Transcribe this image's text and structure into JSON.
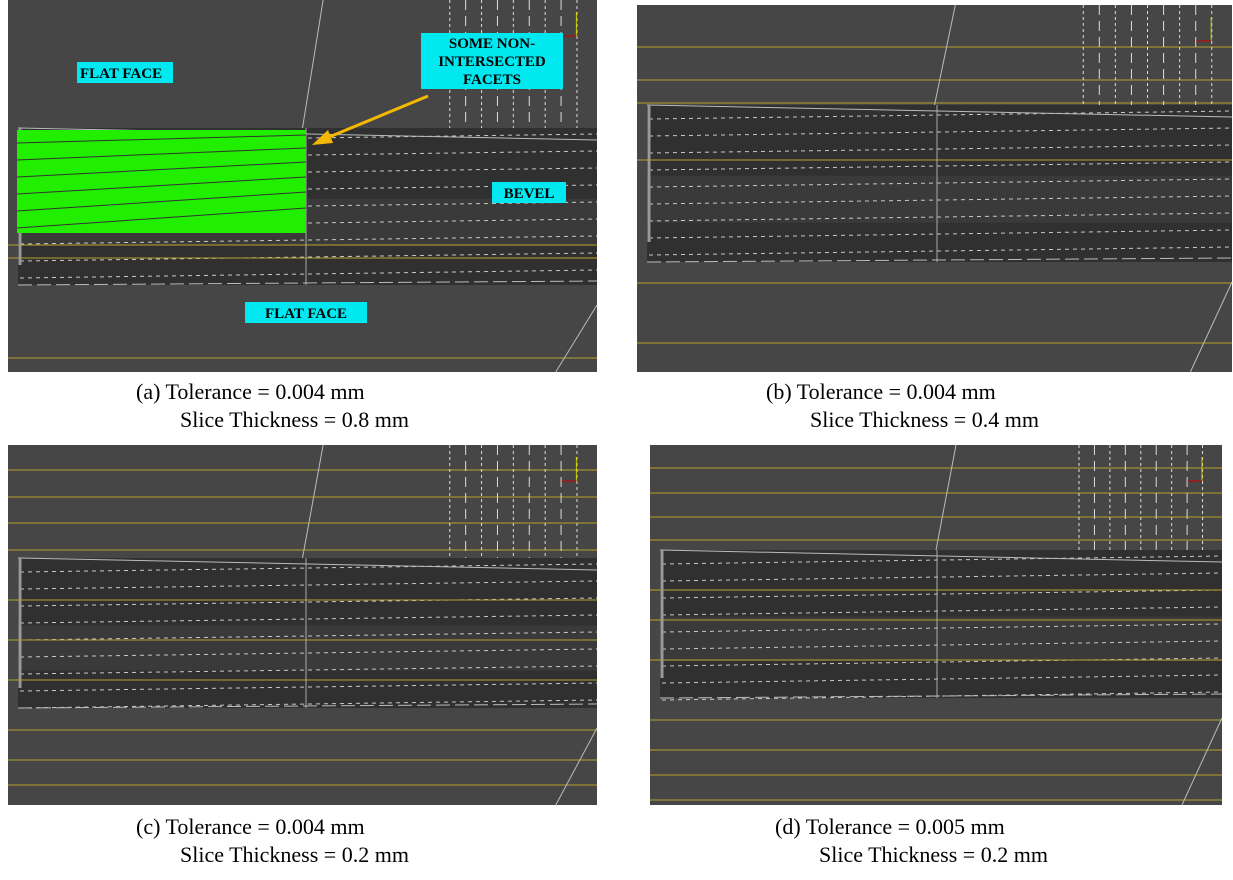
{
  "figures": [
    {
      "tolerance": "(a) Tolerance = 0.004 mm",
      "thickness": "Slice Thickness = 0.8 mm"
    },
    {
      "tolerance": "(b) Tolerance = 0.004 mm",
      "thickness": "Slice Thickness = 0.4 mm"
    },
    {
      "tolerance": "(c) Tolerance = 0.004 mm",
      "thickness": "Slice Thickness = 0.2 mm"
    },
    {
      "tolerance": "(d) Tolerance = 0.005 mm",
      "thickness": "Slice Thickness = 0.2 mm"
    }
  ],
  "annotations": {
    "flat_face_top": "FLAT FACE",
    "facets": [
      "SOME NON-",
      "INTERSECTED",
      "FACETS"
    ],
    "bevel": "BEVEL",
    "flat_face_bottom": "FLAT FACE"
  }
}
